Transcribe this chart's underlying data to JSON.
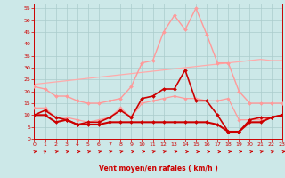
{
  "background_color": "#cce8e8",
  "grid_color": "#aacccc",
  "xlabel": "Vent moyen/en rafales ( km/h )",
  "xlim": [
    0,
    23
  ],
  "ylim": [
    0,
    57
  ],
  "yticks": [
    0,
    5,
    10,
    15,
    20,
    25,
    30,
    35,
    40,
    45,
    50,
    55
  ],
  "xticks": [
    0,
    1,
    2,
    3,
    4,
    5,
    6,
    7,
    8,
    9,
    10,
    11,
    12,
    13,
    14,
    15,
    16,
    17,
    18,
    19,
    20,
    21,
    22,
    23
  ],
  "hours": [
    0,
    1,
    2,
    3,
    4,
    5,
    6,
    7,
    8,
    9,
    10,
    11,
    12,
    13,
    14,
    15,
    16,
    17,
    18,
    19,
    20,
    21,
    22,
    23
  ],
  "series": [
    {
      "name": "rafales_light",
      "color": "#ff9999",
      "linewidth": 1.0,
      "marker": "D",
      "markersize": 2.0,
      "values": [
        22,
        21,
        18,
        18,
        16,
        15,
        15,
        16,
        17,
        22,
        32,
        33,
        45,
        52,
        46,
        55,
        44,
        32,
        32,
        20,
        15,
        15,
        15,
        15
      ]
    },
    {
      "name": "vent_light_trend",
      "color": "#ffaaaa",
      "linewidth": 0.9,
      "marker": null,
      "values": [
        23,
        23.5,
        24,
        24.5,
        25,
        25.5,
        26,
        26.5,
        27,
        27.5,
        28,
        28.5,
        29,
        29.5,
        30,
        30.5,
        31,
        31.5,
        32,
        32.5,
        33,
        33.5,
        33,
        33
      ]
    },
    {
      "name": "vent_moyen_light",
      "color": "#ff9999",
      "linewidth": 0.9,
      "marker": "D",
      "markersize": 1.8,
      "values": [
        13,
        13,
        9,
        9,
        8,
        7,
        8,
        9,
        13,
        9,
        15,
        16,
        17,
        18,
        17,
        17,
        16,
        16,
        17,
        8,
        8,
        8,
        9,
        10
      ]
    },
    {
      "name": "rafales_dark",
      "color": "#cc0000",
      "linewidth": 1.2,
      "marker": "D",
      "markersize": 2.0,
      "values": [
        10,
        12,
        9,
        8,
        6,
        7,
        7,
        9,
        12,
        9,
        17,
        18,
        21,
        21,
        29,
        16,
        16,
        10,
        3,
        3,
        8,
        9,
        9,
        10
      ]
    },
    {
      "name": "vent_moyen_dark",
      "color": "#cc0000",
      "linewidth": 1.5,
      "marker": "D",
      "markersize": 2.0,
      "values": [
        10,
        10,
        7,
        8,
        6,
        6,
        6,
        7,
        7,
        7,
        7,
        7,
        7,
        7,
        7,
        7,
        7,
        6,
        3,
        3,
        7,
        7,
        9,
        10
      ]
    }
  ],
  "arrow_angles": [
    45,
    60,
    45,
    45,
    30,
    45,
    45,
    45,
    45,
    30,
    30,
    45,
    45,
    30,
    15,
    15,
    15,
    15,
    30,
    30,
    30,
    45,
    45,
    30
  ]
}
